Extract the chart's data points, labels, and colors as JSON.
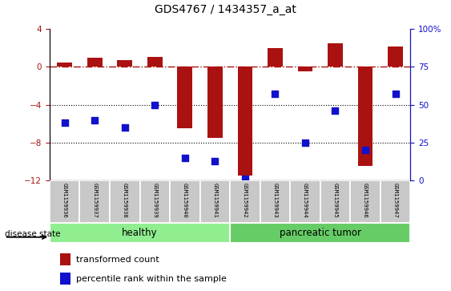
{
  "title": "GDS4767 / 1434357_a_at",
  "samples": [
    "GSM1159936",
    "GSM1159937",
    "GSM1159938",
    "GSM1159939",
    "GSM1159940",
    "GSM1159941",
    "GSM1159942",
    "GSM1159943",
    "GSM1159944",
    "GSM1159945",
    "GSM1159946",
    "GSM1159947"
  ],
  "transformed_count": [
    0.5,
    1.0,
    0.7,
    1.1,
    -6.5,
    -7.5,
    -11.5,
    2.0,
    -0.5,
    2.5,
    -10.5,
    2.2
  ],
  "percentile_rank": [
    38,
    40,
    35,
    50,
    15,
    13,
    1,
    57,
    25,
    46,
    20,
    57
  ],
  "group_labels": [
    "healthy",
    "pancreatic tumor"
  ],
  "healthy_n": 6,
  "tumor_n": 6,
  "bar_color": "#aa1111",
  "dot_color": "#1111cc",
  "left_ylim": [
    -12,
    4
  ],
  "right_ylim": [
    0,
    100
  ],
  "left_yticks": [
    -12,
    -8,
    -4,
    0,
    4
  ],
  "right_yticks": [
    0,
    25,
    50,
    75,
    100
  ],
  "right_yticklabels": [
    "0",
    "25",
    "50",
    "75",
    "100%"
  ],
  "hline_y": 0,
  "dotted_lines": [
    -4,
    -8
  ],
  "healthy_color": "#90ee90",
  "tumor_color": "#66cc66",
  "group_box_color": "#c8c8c8",
  "bar_width": 0.5,
  "dot_size": 40
}
